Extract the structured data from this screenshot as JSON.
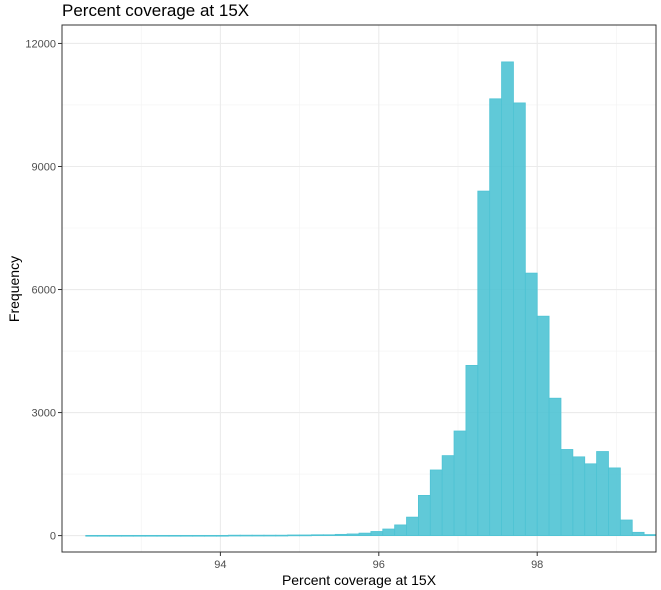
{
  "chart_data": {
    "type": "bar",
    "title": "Percent coverage at 15X",
    "xlabel": "Percent coverage at 15X",
    "ylabel": "Frequency",
    "xlim": [
      92.0,
      99.5
    ],
    "ylim": [
      -400,
      12450
    ],
    "x_ticks": [
      94,
      96,
      98
    ],
    "y_ticks": [
      0,
      3000,
      6000,
      9000,
      12000
    ],
    "grid": true,
    "bin_width": 0.15,
    "bin_start": 92.3,
    "values": [
      5,
      5,
      5,
      5,
      5,
      5,
      5,
      5,
      5,
      5,
      5,
      5,
      10,
      10,
      10,
      10,
      10,
      15,
      15,
      20,
      20,
      30,
      40,
      60,
      100,
      160,
      260,
      450,
      980,
      1600,
      1950,
      2550,
      4150,
      8400,
      10650,
      11550,
      10550,
      6400,
      5350,
      3350,
      2100,
      1920,
      1750,
      2050,
      1650,
      380,
      80,
      25
    ],
    "bar_color": "#4fc3d4"
  }
}
